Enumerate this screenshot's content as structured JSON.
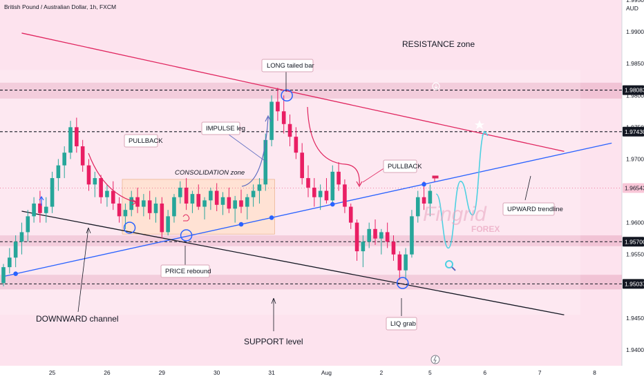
{
  "header": {
    "symbol_title": "British Pound / Australian Dollar, 1h, FXCM",
    "currency": "AUD"
  },
  "watermark": {
    "brand": "Fingrid",
    "sub": "FOREX"
  },
  "chart_data": {
    "type": "candlestick",
    "pair": "GBP/AUD",
    "timeframe": "1h",
    "y_axis": {
      "ylim": [
        1.9375,
        1.995
      ],
      "ticks": [
        "1.94000",
        "1.94500",
        "1.95000",
        "1.95500",
        "1.96000",
        "1.96500",
        "1.97000",
        "1.97500",
        "1.98000",
        "1.98500",
        "1.99000",
        "1.99500"
      ]
    },
    "x_axis": {
      "ticks": [
        {
          "label": "25",
          "i": 8
        },
        {
          "label": "26",
          "i": 17
        },
        {
          "label": "29",
          "i": 26
        },
        {
          "label": "30",
          "i": 35
        },
        {
          "label": "31",
          "i": 44
        },
        {
          "label": "Aug",
          "i": 53
        },
        {
          "label": "2",
          "i": 62
        },
        {
          "label": "5",
          "i": 70
        },
        {
          "label": "6",
          "i": 79
        },
        {
          "label": "7",
          "i": 88
        },
        {
          "label": "8",
          "i": 97
        }
      ]
    },
    "price_levels": [
      {
        "value": 1.98083,
        "label": "1.98083",
        "style": "dark"
      },
      {
        "value": 1.9743,
        "label": "1.97430",
        "style": "dark"
      },
      {
        "value": 1.96543,
        "label": "1.96543",
        "style": "red"
      },
      {
        "value": 1.957,
        "label": "1.95700",
        "style": "dark"
      },
      {
        "value": 1.95037,
        "label": "1.95037",
        "style": "dark"
      }
    ],
    "zones": [
      {
        "name": "RESISTANCE zone",
        "from": 1.9795,
        "to": 1.982
      },
      {
        "name": "SUPPORT level",
        "from": 1.9495,
        "to": 1.9518
      },
      {
        "name": "mid support band",
        "from": 1.9563,
        "to": 1.958
      }
    ],
    "consolidation_zone": {
      "label": "CONSOLIDATION zone",
      "i_start": 19.5,
      "i_end": 44.5,
      "from": 1.9582,
      "to": 1.9668
    },
    "trendlines": [
      {
        "name": "resistance trendline",
        "color": "#e0245e",
        "p1": {
          "i": 3,
          "v": 1.9898
        },
        "p2": {
          "i": 92,
          "v": 1.9712
        }
      },
      {
        "name": "UPWARD trendline",
        "color": "#2962ff",
        "p1": {
          "i": -0.2,
          "v": 1.9515
        },
        "p2": {
          "i": 99.8,
          "v": 1.9725
        }
      },
      {
        "name": "DOWNWARD channel",
        "color": "#131722",
        "p1": {
          "i": 3,
          "v": 1.9618
        },
        "p2": {
          "i": 92,
          "v": 1.9455
        }
      }
    ],
    "candles": [
      [
        1.9505,
        1.9535,
        1.95,
        1.953
      ],
      [
        1.953,
        1.956,
        1.952,
        1.9545
      ],
      [
        1.9545,
        1.958,
        1.953,
        1.957
      ],
      [
        1.957,
        1.96,
        1.955,
        1.9585
      ],
      [
        1.9585,
        1.962,
        1.957,
        1.961
      ],
      [
        1.961,
        1.964,
        1.96,
        1.963
      ],
      [
        1.963,
        1.965,
        1.96,
        1.9615
      ],
      [
        1.9615,
        1.964,
        1.96,
        1.9625
      ],
      [
        1.9625,
        1.968,
        1.9615,
        1.967
      ],
      [
        1.967,
        1.97,
        1.965,
        1.969
      ],
      [
        1.969,
        1.972,
        1.967,
        1.971
      ],
      [
        1.971,
        1.976,
        1.97,
        1.975
      ],
      [
        1.975,
        1.9765,
        1.971,
        1.972
      ],
      [
        1.972,
        1.973,
        1.968,
        1.969
      ],
      [
        1.969,
        1.97,
        1.965,
        1.966
      ],
      [
        1.966,
        1.968,
        1.964,
        1.967
      ],
      [
        1.967,
        1.9675,
        1.963,
        1.964
      ],
      [
        1.964,
        1.966,
        1.9625,
        1.965
      ],
      [
        1.965,
        1.9665,
        1.962,
        1.963
      ],
      [
        1.963,
        1.964,
        1.96,
        1.961
      ],
      [
        1.961,
        1.963,
        1.959,
        1.962
      ],
      [
        1.962,
        1.965,
        1.961,
        1.964
      ],
      [
        1.964,
        1.9655,
        1.9615,
        1.9625
      ],
      [
        1.9625,
        1.9645,
        1.961,
        1.9635
      ],
      [
        1.9635,
        1.965,
        1.9605,
        1.9615
      ],
      [
        1.9615,
        1.964,
        1.96,
        1.963
      ],
      [
        1.963,
        1.964,
        1.9575,
        1.9585
      ],
      [
        1.9585,
        1.962,
        1.958,
        1.961
      ],
      [
        1.961,
        1.9645,
        1.96,
        1.964
      ],
      [
        1.964,
        1.9665,
        1.963,
        1.9655
      ],
      [
        1.9655,
        1.967,
        1.962,
        1.963
      ],
      [
        1.963,
        1.965,
        1.9615,
        1.9645
      ],
      [
        1.9645,
        1.966,
        1.962,
        1.9625
      ],
      [
        1.9625,
        1.964,
        1.9605,
        1.9635
      ],
      [
        1.9635,
        1.9655,
        1.962,
        1.965
      ],
      [
        1.965,
        1.9662,
        1.9618,
        1.9628
      ],
      [
        1.9628,
        1.9648,
        1.9612,
        1.964
      ],
      [
        1.964,
        1.9655,
        1.9615,
        1.9622
      ],
      [
        1.9622,
        1.9642,
        1.96,
        1.9635
      ],
      [
        1.9635,
        1.9652,
        1.9615,
        1.9625
      ],
      [
        1.9625,
        1.9645,
        1.9605,
        1.964
      ],
      [
        1.964,
        1.966,
        1.9625,
        1.965
      ],
      [
        1.965,
        1.967,
        1.963,
        1.966
      ],
      [
        1.966,
        1.974,
        1.965,
        1.973
      ],
      [
        1.973,
        1.98,
        1.972,
        1.979
      ],
      [
        1.979,
        1.9812,
        1.976,
        1.9775
      ],
      [
        1.9775,
        1.98,
        1.974,
        1.9755
      ],
      [
        1.9755,
        1.977,
        1.972,
        1.9735
      ],
      [
        1.9735,
        1.975,
        1.97,
        1.971
      ],
      [
        1.971,
        1.9725,
        1.966,
        1.967
      ],
      [
        1.967,
        1.969,
        1.964,
        1.9655
      ],
      [
        1.9655,
        1.967,
        1.9625,
        1.964
      ],
      [
        1.964,
        1.966,
        1.962,
        1.965
      ],
      [
        1.965,
        1.967,
        1.963,
        1.9635
      ],
      [
        1.9635,
        1.969,
        1.963,
        1.968
      ],
      [
        1.968,
        1.9695,
        1.965,
        1.966
      ],
      [
        1.966,
        1.9668,
        1.9615,
        1.9625
      ],
      [
        1.9625,
        1.963,
        1.959,
        1.96
      ],
      [
        1.96,
        1.9605,
        1.954,
        1.9555
      ],
      [
        1.9555,
        1.958,
        1.953,
        1.957
      ],
      [
        1.957,
        1.96,
        1.956,
        1.959
      ],
      [
        1.959,
        1.9605,
        1.9565,
        1.9575
      ],
      [
        1.9575,
        1.959,
        1.955,
        1.9585
      ],
      [
        1.9585,
        1.96,
        1.956,
        1.957
      ],
      [
        1.957,
        1.958,
        1.954,
        1.955
      ],
      [
        1.955,
        1.9555,
        1.951,
        1.9525
      ],
      [
        1.9525,
        1.956,
        1.951,
        1.955
      ],
      [
        1.955,
        1.962,
        1.9545,
        1.961
      ],
      [
        1.961,
        1.965,
        1.96,
        1.964
      ],
      [
        1.964,
        1.9665,
        1.962,
        1.963
      ],
      [
        1.963,
        1.966,
        1.961,
        1.965
      ]
    ],
    "projection": [
      [
        71,
        1.9645
      ],
      [
        73,
        1.956
      ],
      [
        75,
        1.9665
      ],
      [
        77,
        1.9612
      ],
      [
        79,
        1.9743
      ]
    ],
    "annotations": {
      "resistance": "RESISTANCE zone",
      "long_tailed": "LONG tailed bar",
      "impulse": "IMPULSE leg",
      "pullback1": "PULLBACK",
      "pullback2": "PULLBACK",
      "consolidation": "CONSOLIDATION zone",
      "price_rebound": "PRICE rebound",
      "upward": "UPWARD trendline",
      "downward": "DOWNWARD channel",
      "support": "SUPPORT level",
      "liq": "LIQ grab"
    },
    "colors": {
      "bull": "#26a69a",
      "bear": "#e91e63",
      "resistance_line": "#e0245e",
      "upward_line": "#2962ff",
      "channel_line": "#131722",
      "projection": "#4dd0e1"
    }
  }
}
